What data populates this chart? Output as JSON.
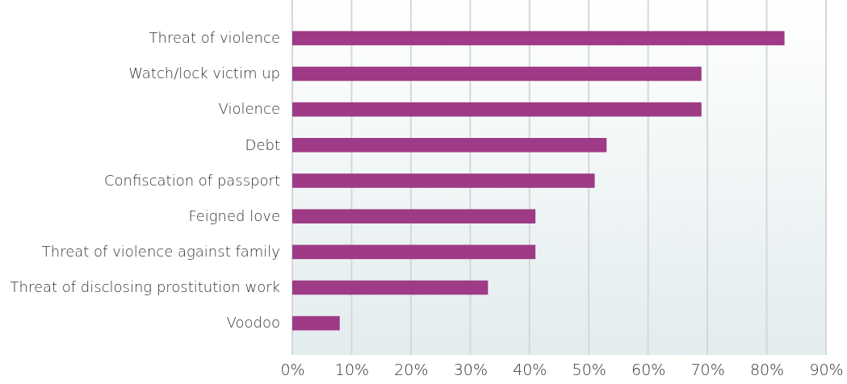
{
  "chart_data": {
    "type": "bar",
    "orientation": "horizontal",
    "categories": [
      "Threat of violence",
      "Watch/lock victim up",
      "Violence",
      "Debt",
      "Confiscation of passport",
      "Feigned love",
      "Threat of violence against family",
      "Threat of disclosing prostitution work",
      "Voodoo"
    ],
    "values": [
      83,
      69,
      69,
      53,
      51,
      41,
      41,
      33,
      8
    ],
    "color": "#9e3a86",
    "xlim": [
      0,
      90
    ],
    "xticks": [
      {
        "value": 0,
        "label": "0%"
      },
      {
        "value": 10,
        "label": "10%"
      },
      {
        "value": 20,
        "label": "20%"
      },
      {
        "value": 30,
        "label": "30%"
      },
      {
        "value": 40,
        "label": "40%"
      },
      {
        "value": 50,
        "label": "50%"
      },
      {
        "value": 60,
        "label": "60%"
      },
      {
        "value": 70,
        "label": "70%"
      },
      {
        "value": 80,
        "label": "80%"
      },
      {
        "value": 90,
        "label": "90%"
      }
    ],
    "grid": "x"
  }
}
